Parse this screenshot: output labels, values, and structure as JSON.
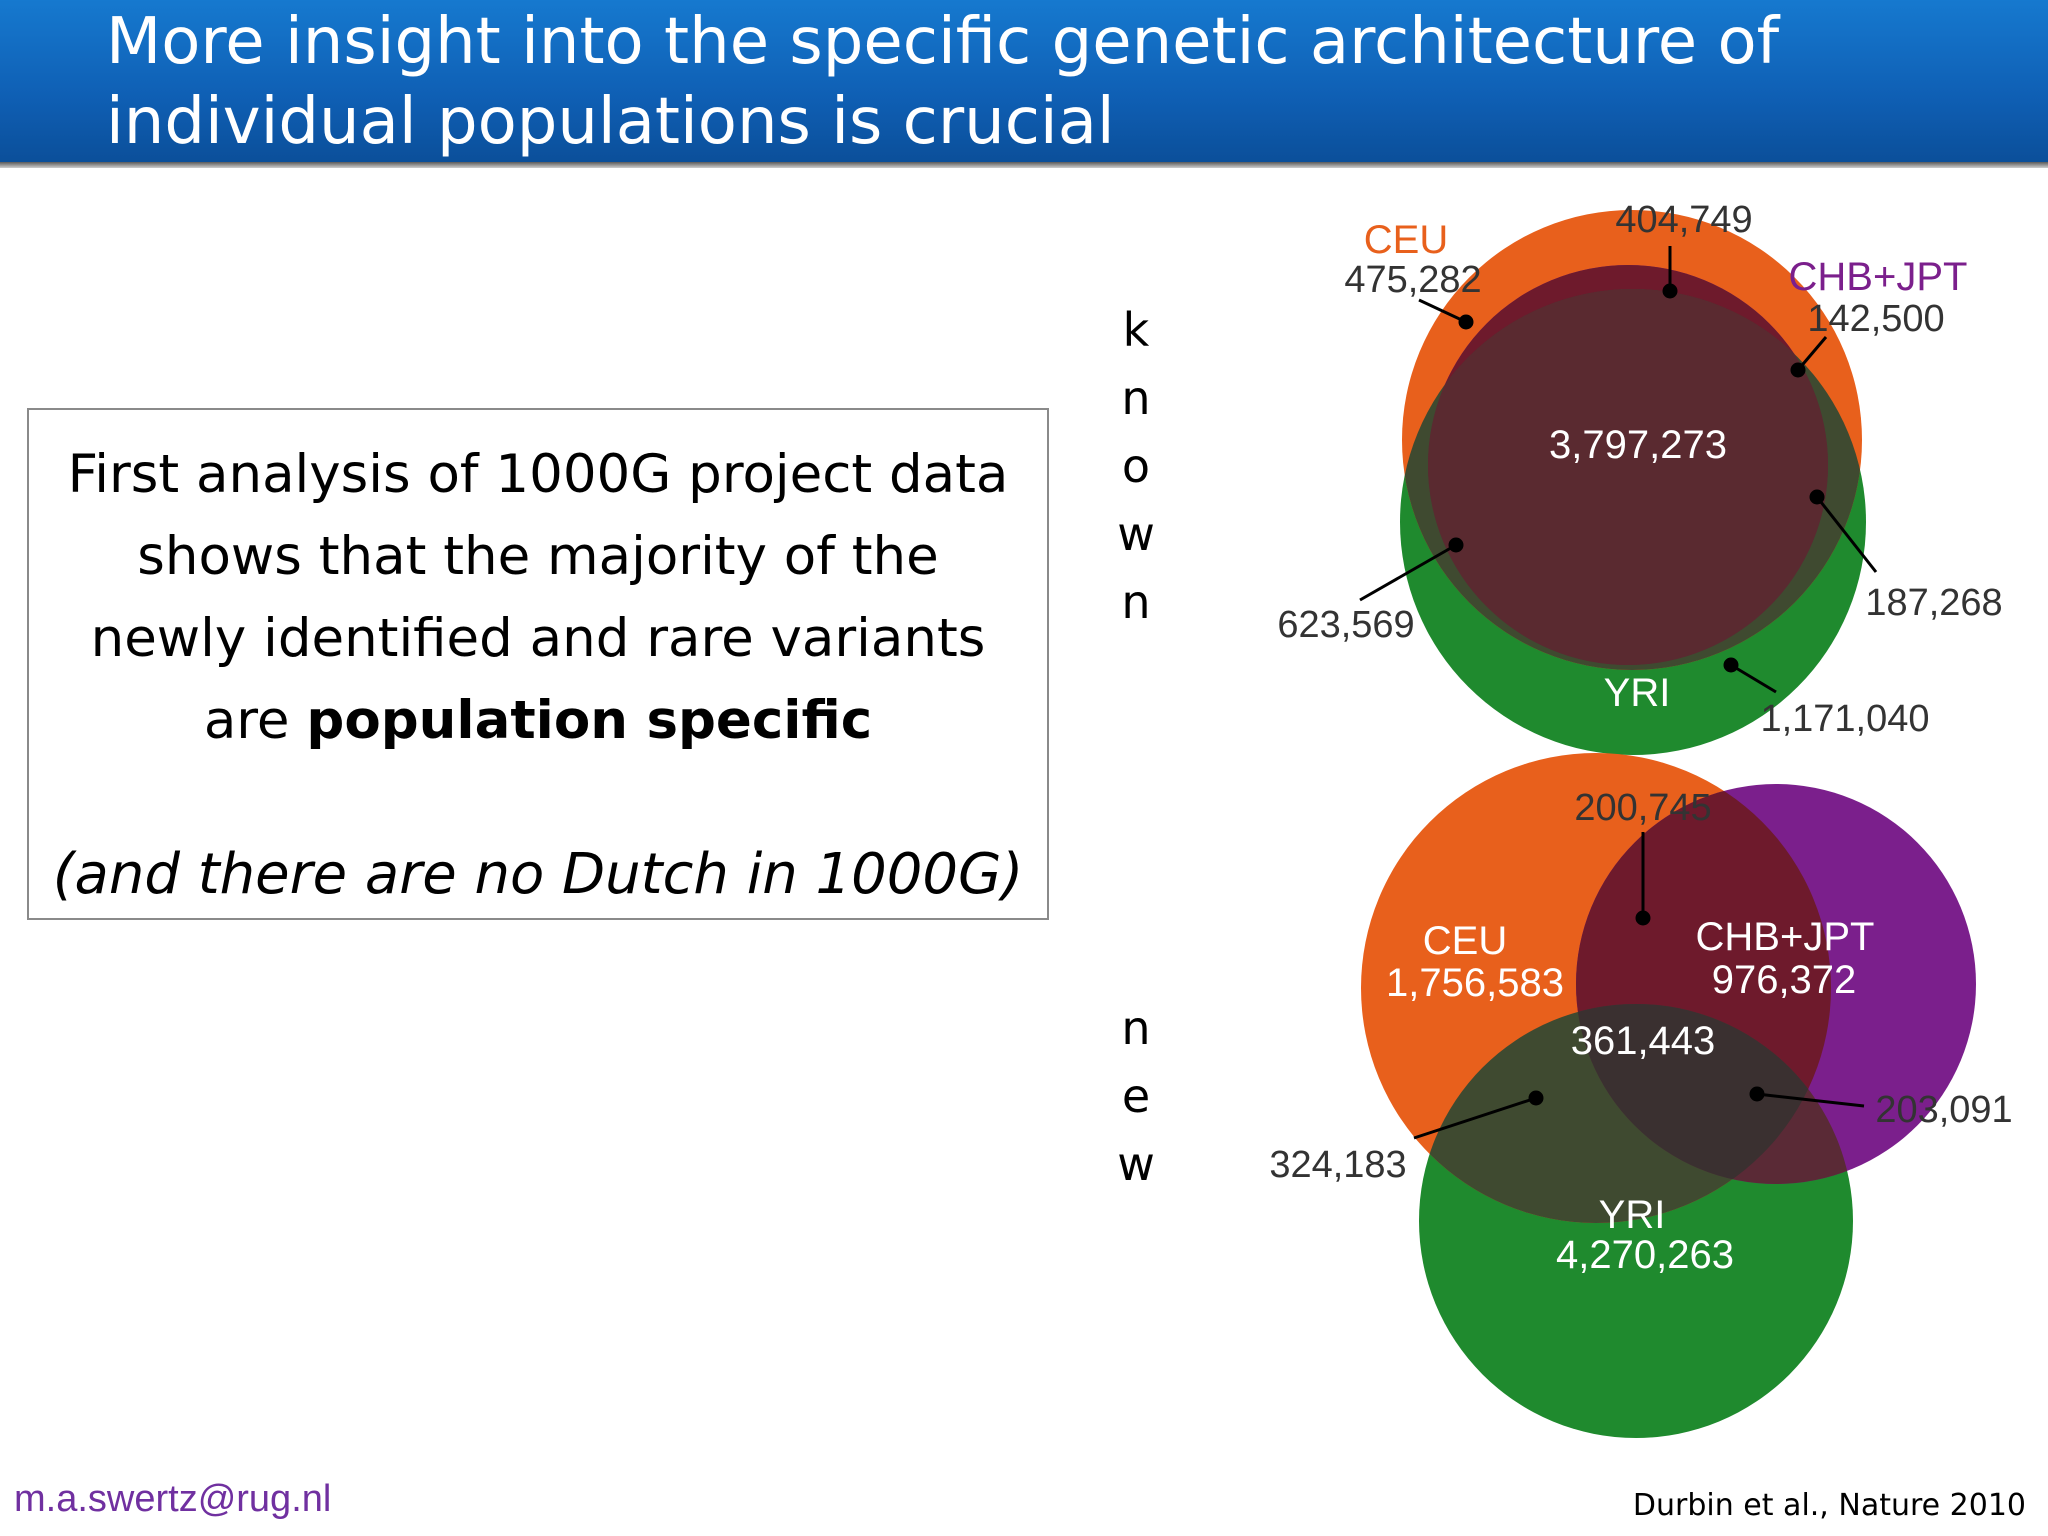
{
  "slide": {
    "title_line1": "More insight into the specific genetic architecture of",
    "title_line2": "individual populations is crucial"
  },
  "textbox": {
    "line1": "First analysis of 1000G project data",
    "line2": "shows that the majority of the",
    "line3": "newly identified and rare variants",
    "line4_prefix": "are ",
    "line4_bold": "population specific",
    "note": "(and there are no Dutch in 1000G)"
  },
  "side_labels": {
    "known": [
      "k",
      "n",
      "o",
      "w",
      "n"
    ],
    "new": [
      "n",
      "e",
      "w"
    ]
  },
  "known_venn": {
    "ceu_label": "CEU",
    "ceu_count": "475,282",
    "chb_label": "CHB+JPT",
    "chb_count": "142,500",
    "yri_label": "YRI",
    "ceu_chb": "404,749",
    "all_three": "3,797,273",
    "ceu_yri": "623,569",
    "chb_yri": "187,268",
    "yri_count": "1,171,040"
  },
  "new_venn": {
    "ceu_label": "CEU",
    "ceu_count": "1,756,583",
    "chb_label": "CHB+JPT",
    "chb_count": "976,372",
    "yri_label": "YRI",
    "yri_count": "4,270,263",
    "ceu_chb": "200,745",
    "all_three": "361,443",
    "ceu_yri": "324,183",
    "chb_yri": "203,091"
  },
  "colors": {
    "ceu": "#e8601c",
    "chb_jpt": "#7b1f8c",
    "yri": "#1f8a2e",
    "header": "#0f5fb4",
    "footer_email": "#7030a0"
  },
  "footer": {
    "email": "m.a.swertz@rug.nl",
    "citation": "Durbin et al., Nature 2010"
  }
}
